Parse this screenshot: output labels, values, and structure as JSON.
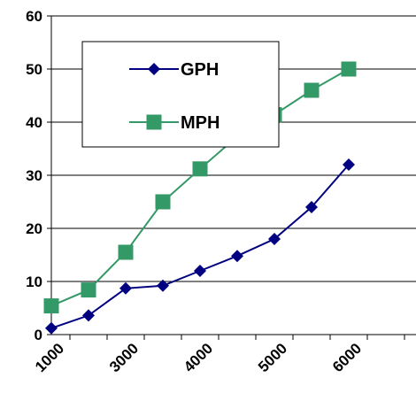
{
  "chart_data": {
    "type": "line",
    "x": [
      1000,
      2000,
      3000,
      3500,
      4000,
      4500,
      5000,
      5500,
      6000
    ],
    "x_tick_labels": [
      "1000",
      "3000",
      "4000",
      "5000",
      "6000"
    ],
    "y_tick_labels": [
      "0",
      "10",
      "20",
      "30",
      "40",
      "50",
      "60"
    ],
    "ylim": [
      0,
      60
    ],
    "grid": "horizontal",
    "legend_placement": "upper-left-center",
    "series": [
      {
        "name": "GPH",
        "color": "#000080",
        "marker": "diamond",
        "values": [
          1.2,
          3.6,
          8.7,
          9.2,
          12.0,
          14.8,
          18.0,
          24.0,
          32.0
        ]
      },
      {
        "name": "MPH",
        "color": "#339966",
        "marker": "square",
        "values": [
          5.4,
          8.4,
          15.5,
          25.0,
          31.2,
          37.3,
          41.4,
          46.0,
          50.0
        ]
      }
    ]
  }
}
